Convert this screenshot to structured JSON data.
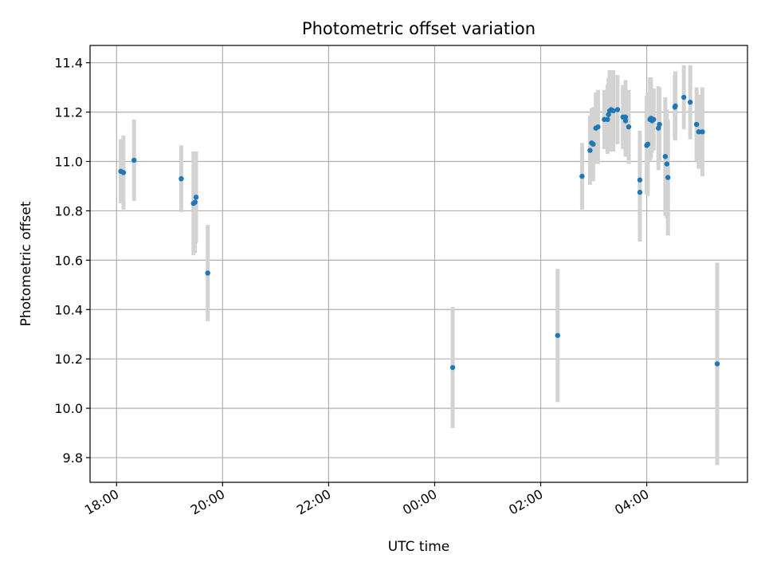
{
  "chart_data": {
    "type": "scatter",
    "title": "Photometric offset variation",
    "xlabel": "UTC time",
    "ylabel": "Photometric offset",
    "xlim": [
      -6.5,
      5.9
    ],
    "ylim": [
      9.7,
      11.47
    ],
    "grid": true,
    "x_unit": "hours relative to 00:00 UTC",
    "xticks": [
      {
        "value": -6,
        "label": "18:00"
      },
      {
        "value": -4,
        "label": "20:00"
      },
      {
        "value": -2,
        "label": "22:00"
      },
      {
        "value": 0,
        "label": "00:00"
      },
      {
        "value": 2,
        "label": "02:00"
      },
      {
        "value": 4,
        "label": "04:00"
      }
    ],
    "yticks": [
      {
        "value": 9.8,
        "label": "9.8"
      },
      {
        "value": 10.0,
        "label": "10.0"
      },
      {
        "value": 10.2,
        "label": "10.2"
      },
      {
        "value": 10.4,
        "label": "10.4"
      },
      {
        "value": 10.6,
        "label": "10.6"
      },
      {
        "value": 10.8,
        "label": "10.8"
      },
      {
        "value": 11.0,
        "label": "11.0"
      },
      {
        "value": 11.2,
        "label": "11.2"
      },
      {
        "value": 11.4,
        "label": "11.4"
      }
    ],
    "colors": {
      "point": "#1f77b4",
      "errorbar": "#d3d3d3",
      "grid": "#b0b0b0"
    },
    "points": [
      {
        "x": -5.92,
        "y": 10.96,
        "err": 0.13
      },
      {
        "x": -5.87,
        "y": 10.955,
        "err": 0.15
      },
      {
        "x": -5.67,
        "y": 11.005,
        "err": 0.165
      },
      {
        "x": -4.78,
        "y": 10.93,
        "err": 0.135
      },
      {
        "x": -4.55,
        "y": 10.83,
        "err": 0.21
      },
      {
        "x": -4.52,
        "y": 10.835,
        "err": 0.205
      },
      {
        "x": -4.5,
        "y": 10.855,
        "err": 0.185
      },
      {
        "x": -4.28,
        "y": 10.548,
        "err": 0.195
      },
      {
        "x": 0.34,
        "y": 10.165,
        "err": 0.245
      },
      {
        "x": 2.32,
        "y": 10.295,
        "err": 0.27
      },
      {
        "x": 2.78,
        "y": 10.94,
        "err": 0.135
      },
      {
        "x": 2.93,
        "y": 11.045,
        "err": 0.14
      },
      {
        "x": 2.96,
        "y": 11.075,
        "err": 0.14
      },
      {
        "x": 2.99,
        "y": 11.07,
        "err": 0.15
      },
      {
        "x": 3.04,
        "y": 11.135,
        "err": 0.145
      },
      {
        "x": 3.08,
        "y": 11.14,
        "err": 0.15
      },
      {
        "x": 3.2,
        "y": 11.17,
        "err": 0.12
      },
      {
        "x": 3.26,
        "y": 11.17,
        "err": 0.14
      },
      {
        "x": 3.28,
        "y": 11.19,
        "err": 0.15
      },
      {
        "x": 3.3,
        "y": 11.205,
        "err": 0.165
      },
      {
        "x": 3.33,
        "y": 11.21,
        "err": 0.155
      },
      {
        "x": 3.37,
        "y": 11.205,
        "err": 0.165
      },
      {
        "x": 3.45,
        "y": 11.21,
        "err": 0.14
      },
      {
        "x": 3.55,
        "y": 11.18,
        "err": 0.13
      },
      {
        "x": 3.6,
        "y": 11.18,
        "err": 0.15
      },
      {
        "x": 3.6,
        "y": 11.165,
        "err": 0.145
      },
      {
        "x": 3.66,
        "y": 11.14,
        "err": 0.15
      },
      {
        "x": 3.87,
        "y": 10.925,
        "err": 0.2
      },
      {
        "x": 3.87,
        "y": 10.875,
        "err": 0.2
      },
      {
        "x": 4.0,
        "y": 11.065,
        "err": 0.2
      },
      {
        "x": 4.02,
        "y": 11.07,
        "err": 0.21
      },
      {
        "x": 4.06,
        "y": 11.17,
        "err": 0.17
      },
      {
        "x": 4.08,
        "y": 11.175,
        "err": 0.165
      },
      {
        "x": 4.1,
        "y": 11.165,
        "err": 0.13
      },
      {
        "x": 4.13,
        "y": 11.17,
        "err": 0.125
      },
      {
        "x": 4.22,
        "y": 11.135,
        "err": 0.17
      },
      {
        "x": 4.24,
        "y": 11.15,
        "err": 0.15
      },
      {
        "x": 4.35,
        "y": 11.02,
        "err": 0.24
      },
      {
        "x": 4.38,
        "y": 10.99,
        "err": 0.22
      },
      {
        "x": 4.4,
        "y": 10.935,
        "err": 0.235
      },
      {
        "x": 4.53,
        "y": 11.22,
        "err": 0.13
      },
      {
        "x": 4.54,
        "y": 11.225,
        "err": 0.14
      },
      {
        "x": 4.7,
        "y": 11.26,
        "err": 0.13
      },
      {
        "x": 4.82,
        "y": 11.24,
        "err": 0.15
      },
      {
        "x": 4.94,
        "y": 11.15,
        "err": 0.15
      },
      {
        "x": 4.98,
        "y": 11.12,
        "err": 0.15
      },
      {
        "x": 5.05,
        "y": 11.12,
        "err": 0.18
      },
      {
        "x": 5.33,
        "y": 10.18,
        "err": 0.41
      }
    ]
  }
}
